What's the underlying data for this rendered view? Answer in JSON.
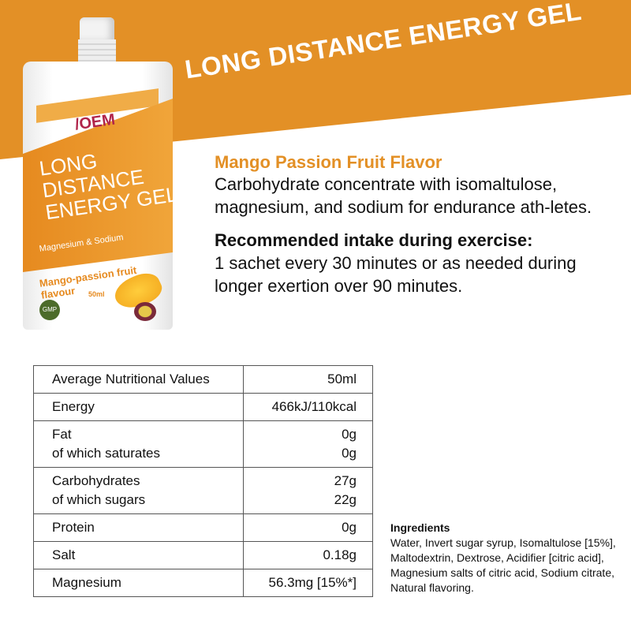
{
  "banner": {
    "title": "LONG DISTANCE ENERGY GEL",
    "color": "#e39026"
  },
  "product": {
    "brand": "/OEM",
    "name_lines": [
      "LONG",
      "DISTANCE",
      "ENERGY GEL"
    ],
    "subtitle": "Magnesium & Sodium",
    "flavor": "Mango-passion fruit flavour",
    "volume": "50ml",
    "badge": "GMP"
  },
  "info": {
    "flavor": "Mango Passion Fruit Flavor",
    "description": "Carbohydrate concentrate with isomaltulose, magnesium, and sodium for endurance ath-letes.",
    "intake_heading": "Recommended intake during exercise:",
    "intake_text": "1 sachet every 30 minutes or as needed during longer exertion over 90 minutes."
  },
  "nutrition": {
    "header": {
      "label": "Average Nutritional Values",
      "value": "50ml"
    },
    "rows": [
      {
        "label": "Energy",
        "value": "466kJ/110kcal"
      },
      {
        "label": "Fat",
        "value": "0g",
        "sub_label": "of which saturates",
        "sub_value": "0g"
      },
      {
        "label": "Carbohydrates",
        "value": "27g",
        "sub_label": "of which sugars",
        "sub_value": "22g"
      },
      {
        "label": "Protein",
        "value": "0g"
      },
      {
        "label": "Salt",
        "value": "0.18g"
      },
      {
        "label": "Magnesium",
        "value": "56.3mg [15%*]"
      }
    ]
  },
  "ingredients": {
    "heading": "Ingredients",
    "text": "Water, Invert sugar syrup, Isomaltulose [15%], Maltodextrin, Dextrose, Acidifier [citric acid], Magnesium salts of citric acid, Sodium citrate, Natural flavoring."
  }
}
